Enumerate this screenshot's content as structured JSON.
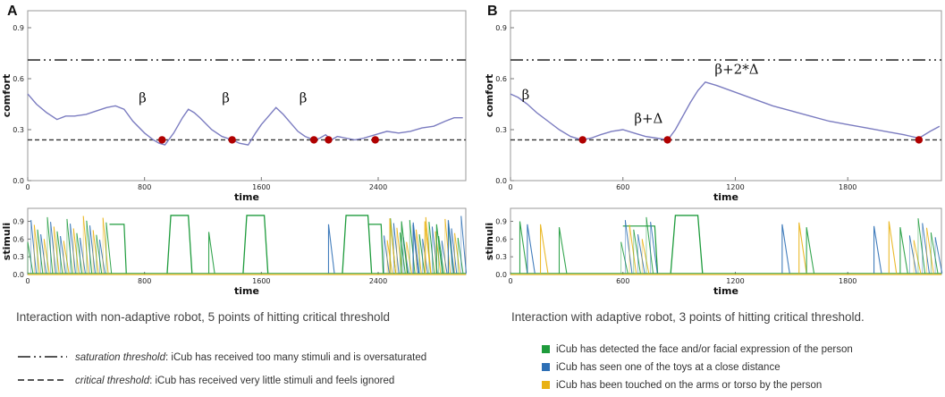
{
  "colors": {
    "comfort_line": "#7b7cc0",
    "threshold_line": "#333333",
    "hit_marker": "#b00000",
    "face": "#1e9b3c",
    "toy": "#2d6fb5",
    "touch": "#e9b214"
  },
  "chart_data": [
    {
      "panel": "A",
      "type": "line",
      "ylabel": "comfort",
      "xlabel": "time",
      "xlim": [
        0,
        3000
      ],
      "ylim": [
        0,
        1
      ],
      "xticks": [
        0,
        800,
        1600,
        2400
      ],
      "yticks": [
        0.0,
        0.3,
        0.6,
        0.9
      ],
      "tick_labels_x": [
        "0",
        "800",
        "1600",
        "2400"
      ],
      "tick_labels_y": [
        "0.0",
        "0.3",
        "0.6",
        "0.9"
      ],
      "saturation_threshold": 0.71,
      "critical_threshold": 0.24,
      "comfort": {
        "x": [
          0,
          60,
          130,
          200,
          260,
          320,
          400,
          470,
          540,
          600,
          660,
          720,
          800,
          860,
          900,
          940,
          1000,
          1060,
          1100,
          1140,
          1180,
          1260,
          1330,
          1400,
          1450,
          1510,
          1560,
          1600,
          1650,
          1700,
          1750,
          1800,
          1850,
          1900,
          1960,
          2000,
          2040,
          2080,
          2120,
          2180,
          2240,
          2300,
          2380,
          2460,
          2540,
          2620,
          2700,
          2780,
          2860,
          2920,
          2980
        ],
        "y": [
          0.51,
          0.45,
          0.4,
          0.36,
          0.38,
          0.38,
          0.39,
          0.41,
          0.43,
          0.44,
          0.42,
          0.35,
          0.28,
          0.24,
          0.22,
          0.21,
          0.28,
          0.37,
          0.42,
          0.4,
          0.37,
          0.3,
          0.26,
          0.24,
          0.22,
          0.21,
          0.28,
          0.33,
          0.38,
          0.43,
          0.39,
          0.34,
          0.29,
          0.26,
          0.24,
          0.25,
          0.27,
          0.24,
          0.26,
          0.25,
          0.24,
          0.25,
          0.27,
          0.29,
          0.28,
          0.29,
          0.31,
          0.32,
          0.35,
          0.37,
          0.37
        ]
      },
      "hits": [
        920,
        1400,
        1960,
        2060,
        2380
      ],
      "annotations": [
        {
          "text": "β",
          "x": 760,
          "y": 0.46
        },
        {
          "text": "β",
          "x": 1330,
          "y": 0.46
        },
        {
          "text": "β",
          "x": 1860,
          "y": 0.46
        }
      ]
    },
    {
      "panel": "B",
      "type": "line",
      "ylabel": "comfort",
      "xlabel": "time",
      "xlim": [
        0,
        2300
      ],
      "ylim": [
        0,
        1
      ],
      "xticks": [
        0,
        600,
        1200,
        1800
      ],
      "yticks": [
        0.0,
        0.3,
        0.6,
        0.9
      ],
      "tick_labels_x": [
        "0",
        "600",
        "1200",
        "1800"
      ],
      "tick_labels_y": [
        "0.0",
        "0.3",
        "0.6",
        "0.9"
      ],
      "saturation_threshold": 0.71,
      "critical_threshold": 0.24,
      "comfort": {
        "x": [
          0,
          40,
          90,
          140,
          200,
          260,
          320,
          380,
          430,
          480,
          540,
          600,
          660,
          720,
          780,
          840,
          880,
          920,
          960,
          1000,
          1040,
          1100,
          1200,
          1300,
          1400,
          1500,
          1600,
          1700,
          1800,
          1900,
          2000,
          2100,
          2180,
          2240,
          2290
        ],
        "y": [
          0.51,
          0.49,
          0.45,
          0.4,
          0.35,
          0.3,
          0.26,
          0.24,
          0.25,
          0.27,
          0.29,
          0.3,
          0.28,
          0.26,
          0.25,
          0.24,
          0.3,
          0.38,
          0.46,
          0.53,
          0.58,
          0.56,
          0.52,
          0.48,
          0.44,
          0.41,
          0.38,
          0.35,
          0.33,
          0.31,
          0.29,
          0.27,
          0.25,
          0.29,
          0.32
        ]
      },
      "hits": [
        385,
        838,
        2180
      ],
      "annotations": [
        {
          "text": "β",
          "x": 60,
          "y": 0.48
        },
        {
          "text": "β+Δ",
          "x": 660,
          "y": 0.34
        },
        {
          "text": "β+2*Δ",
          "x": 1090,
          "y": 0.63
        }
      ]
    }
  ],
  "stimuli_panels": [
    {
      "panel": "A",
      "ylabel": "stimuli",
      "xlabel": "time",
      "xlim": [
        0,
        3000
      ],
      "xticks": [
        0,
        800,
        1600,
        2400
      ],
      "tick_labels_x": [
        "0",
        "800",
        "1600",
        "2400"
      ],
      "tick_labels_y": [
        "0.0",
        "0.3",
        "0.6",
        "0.9"
      ],
      "pulses": [
        [
          980,
          1100
        ],
        [
          1500,
          1620
        ],
        [
          2180,
          2330
        ]
      ],
      "bursts": [
        [
          0,
          560
        ],
        [
          2440,
          2990
        ]
      ],
      "flat_segments": [
        [
          560,
          660,
          0.85
        ],
        [
          2330,
          2420,
          0.85
        ]
      ],
      "spikes": [
        [
          1240,
          0.72
        ],
        [
          2060,
          0.85
        ],
        [
          2480,
          0.95
        ],
        [
          2560,
          0.9
        ],
        [
          2640,
          0.88
        ],
        [
          2720,
          0.9
        ],
        [
          2800,
          0.85
        ],
        [
          2880,
          0.92
        ]
      ]
    },
    {
      "panel": "B",
      "ylabel": "stimuli",
      "xlabel": "time",
      "xlim": [
        0,
        2300
      ],
      "xticks": [
        0,
        600,
        1200,
        1800
      ],
      "tick_labels_x": [
        "0",
        "600",
        "1200",
        "1800"
      ],
      "tick_labels_y": [
        "0.0",
        "0.3",
        "0.6",
        "0.9"
      ],
      "pulses": [
        [
          880,
          1000
        ]
      ],
      "bursts": [
        [
          590,
          770
        ],
        [
          2130,
          2290
        ]
      ],
      "flat_segments": [
        [
          600,
          770,
          0.82
        ]
      ],
      "spikes": [
        [
          50,
          0.9
        ],
        [
          90,
          0.85
        ],
        [
          160,
          0.85
        ],
        [
          260,
          0.8
        ],
        [
          1450,
          0.85
        ],
        [
          1540,
          0.88
        ],
        [
          1580,
          0.8
        ],
        [
          1940,
          0.82
        ],
        [
          2020,
          0.9
        ],
        [
          2080,
          0.8
        ]
      ]
    }
  ],
  "panel_labels": {
    "a": "A",
    "b": "B"
  },
  "captions": {
    "a": "Interaction with non-adaptive robot, 5 points of hitting critical threshold",
    "b": "Interaction with adaptive robot, 3 points of hitting critical threshold."
  },
  "legend_left": {
    "saturation_term": "saturation threshold",
    "saturation_desc": ": iCub has received too many stimuli and is oversaturated",
    "critical_term": "critical threshold",
    "critical_desc": ": iCub has received  very little stimuli and feels ignored"
  },
  "legend_right": [
    {
      "text": "iCub has detected the face and/or facial expression of the person",
      "color_key": "face"
    },
    {
      "text": "iCub has seen one of the toys at a close distance",
      "color_key": "toy"
    },
    {
      "text": "iCub has been touched on the arms or torso by the person",
      "color_key": "touch"
    }
  ]
}
